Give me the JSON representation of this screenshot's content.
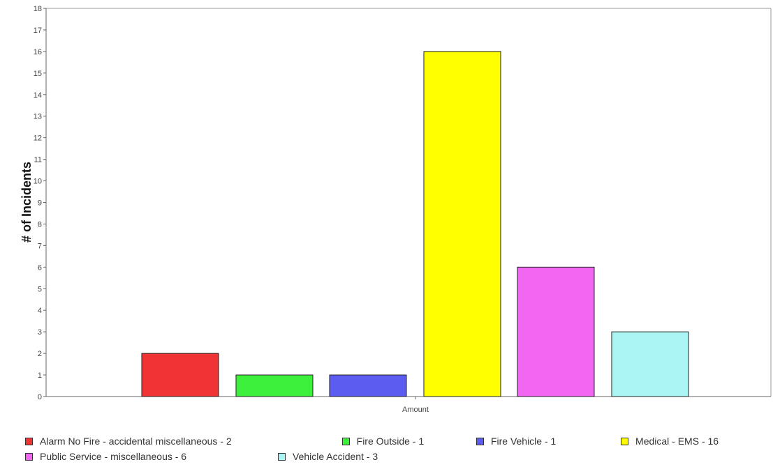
{
  "chart_data": {
    "type": "bar",
    "title": "",
    "ylabel": "# of Incidents",
    "xlabel": "",
    "x_tick_label": "Amount",
    "ylim": [
      0,
      18
    ],
    "yticks": [
      0,
      1,
      2,
      3,
      4,
      5,
      6,
      7,
      8,
      9,
      10,
      11,
      12,
      13,
      14,
      15,
      16,
      17,
      18
    ],
    "grid": false,
    "legend_position": "bottom",
    "categories": [
      "Amount"
    ],
    "series": [
      {
        "name": "Alarm No Fire - accidental miscellaneous - 2",
        "value": 2,
        "color": "#f03434"
      },
      {
        "name": "Fire Outside - 1",
        "value": 1,
        "color": "#3cf03c"
      },
      {
        "name": "Fire Vehicle - 1",
        "value": 1,
        "color": "#5c5cf0"
      },
      {
        "name": "Medical - EMS - 16",
        "value": 16,
        "color": "#ffff00"
      },
      {
        "name": "Public Service - miscellaneous - 6",
        "value": 6,
        "color": "#f066f0"
      },
      {
        "name": "Vehicle Accident - 3",
        "value": 3,
        "color": "#aaf4f4"
      }
    ]
  }
}
